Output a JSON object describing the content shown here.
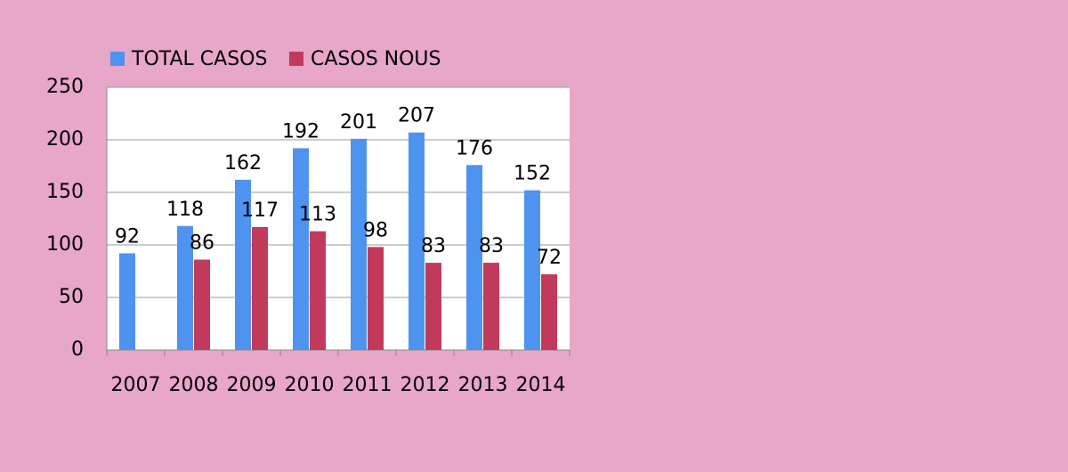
{
  "chart_data": {
    "type": "bar",
    "categories": [
      "2007",
      "2008",
      "2009",
      "2010",
      "2011",
      "2012",
      "2013",
      "2014"
    ],
    "series": [
      {
        "name": "TOTAL CASOS",
        "color": "#4f93f0",
        "values": [
          92,
          118,
          162,
          192,
          201,
          207,
          176,
          152
        ]
      },
      {
        "name": "CASOS NOUS",
        "color": "#c23a5b",
        "values": [
          null,
          86,
          117,
          113,
          98,
          83,
          83,
          72
        ]
      }
    ],
    "ylim": [
      0,
      250
    ],
    "yticks": [
      0,
      50,
      100,
      150,
      200,
      250
    ],
    "grid": true
  }
}
